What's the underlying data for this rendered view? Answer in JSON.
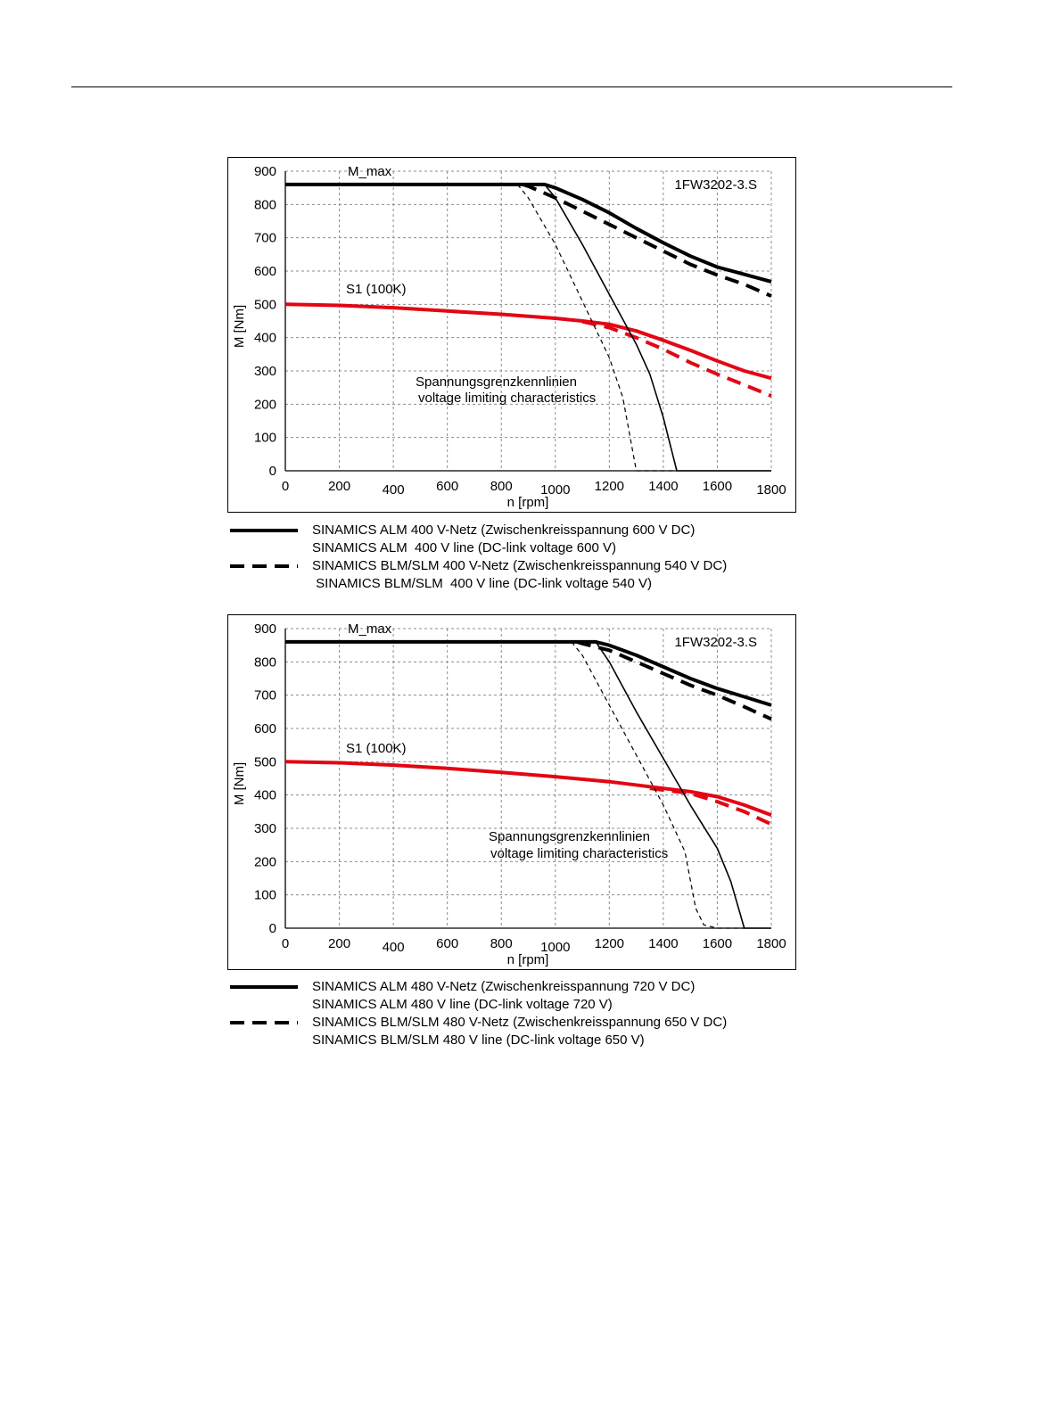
{
  "colors": {
    "s1": "#e30613",
    "limit": "#000000",
    "grid": "#8c8c8c"
  },
  "chart_data": [
    {
      "type": "line",
      "title": "",
      "model": "1FW3202-3.S",
      "xlabel": "n [rpm]",
      "ylabel": "M [Nm]",
      "xlim": [
        0,
        1800
      ],
      "ylim": [
        0,
        900
      ],
      "xticks": [
        0,
        200,
        400,
        600,
        800,
        1000,
        1200,
        1400,
        1600,
        1800
      ],
      "yticks": [
        0,
        100,
        200,
        300,
        400,
        500,
        600,
        700,
        800,
        900
      ],
      "grid": true,
      "annotations": {
        "mmax": "M_max",
        "s1": "S1 (100K)",
        "limit_de": "Spannungsgrenzkennlinien",
        "limit_en": "voltage limiting characteristics"
      },
      "series": [
        {
          "key": "mmax_alm",
          "style": "thick-solid",
          "color": "black",
          "points": [
            [
              0,
              860
            ],
            [
              960,
              860
            ],
            [
              1000,
              850
            ],
            [
              1100,
              815
            ],
            [
              1200,
              775
            ],
            [
              1300,
              728
            ],
            [
              1400,
              685
            ],
            [
              1500,
              645
            ],
            [
              1600,
              612
            ],
            [
              1700,
              590
            ],
            [
              1800,
              568
            ]
          ]
        },
        {
          "key": "mmax_blm",
          "style": "thick-dashed",
          "color": "black",
          "points": [
            [
              880,
              860
            ],
            [
              900,
              855
            ],
            [
              1000,
              820
            ],
            [
              1100,
              780
            ],
            [
              1200,
              740
            ],
            [
              1300,
              700
            ],
            [
              1400,
              660
            ],
            [
              1500,
              620
            ],
            [
              1600,
              588
            ],
            [
              1700,
              560
            ],
            [
              1800,
              525
            ]
          ]
        },
        {
          "key": "s1_alm",
          "style": "thick-solid",
          "color": "red",
          "points": [
            [
              0,
              500
            ],
            [
              200,
              497
            ],
            [
              400,
              490
            ],
            [
              600,
              480
            ],
            [
              800,
              470
            ],
            [
              1000,
              458
            ],
            [
              1100,
              450
            ],
            [
              1200,
              440
            ],
            [
              1300,
              420
            ],
            [
              1400,
              392
            ],
            [
              1500,
              362
            ],
            [
              1600,
              330
            ],
            [
              1700,
              300
            ],
            [
              1800,
              278
            ]
          ]
        },
        {
          "key": "s1_blm",
          "style": "thick-dashed",
          "color": "red",
          "points": [
            [
              1100,
              448
            ],
            [
              1200,
              430
            ],
            [
              1300,
              400
            ],
            [
              1400,
              365
            ],
            [
              1500,
              325
            ],
            [
              1600,
              290
            ],
            [
              1700,
              258
            ],
            [
              1800,
              225
            ]
          ]
        },
        {
          "key": "vlim_alm",
          "style": "thin-solid",
          "color": "black",
          "points": [
            [
              960,
              860
            ],
            [
              1000,
              820
            ],
            [
              1100,
              680
            ],
            [
              1200,
              530
            ],
            [
              1300,
              380
            ],
            [
              1350,
              290
            ],
            [
              1400,
              160
            ],
            [
              1450,
              0
            ],
            [
              1800,
              0
            ]
          ]
        },
        {
          "key": "vlim_blm",
          "style": "thin-dashed",
          "color": "black",
          "points": [
            [
              860,
              860
            ],
            [
              900,
              820
            ],
            [
              1000,
              680
            ],
            [
              1100,
              510
            ],
            [
              1200,
              340
            ],
            [
              1250,
              220
            ],
            [
              1300,
              0
            ],
            [
              1450,
              0
            ]
          ]
        }
      ]
    },
    {
      "type": "line",
      "title": "",
      "model": "1FW3202-3.S",
      "xlabel": "n [rpm]",
      "ylabel": "M [Nm]",
      "xlim": [
        0,
        1800
      ],
      "ylim": [
        0,
        900
      ],
      "xticks": [
        0,
        200,
        400,
        600,
        800,
        1000,
        1200,
        1400,
        1600,
        1800
      ],
      "yticks": [
        0,
        100,
        200,
        300,
        400,
        500,
        600,
        700,
        800,
        900
      ],
      "grid": true,
      "annotations": {
        "mmax": "M_max",
        "s1": "S1 (100K)",
        "limit_de": "Spannungsgrenzkennlinien",
        "limit_en": "voltage limiting characteristics"
      },
      "series": [
        {
          "key": "mmax_alm",
          "style": "thick-solid",
          "color": "black",
          "points": [
            [
              0,
              860
            ],
            [
              1150,
              860
            ],
            [
              1200,
              850
            ],
            [
              1300,
              820
            ],
            [
              1400,
              785
            ],
            [
              1500,
              750
            ],
            [
              1600,
              720
            ],
            [
              1700,
              695
            ],
            [
              1800,
              670
            ]
          ]
        },
        {
          "key": "mmax_blm",
          "style": "thick-dashed",
          "color": "black",
          "points": [
            [
              1080,
              860
            ],
            [
              1100,
              855
            ],
            [
              1200,
              835
            ],
            [
              1300,
              800
            ],
            [
              1400,
              765
            ],
            [
              1500,
              730
            ],
            [
              1600,
              700
            ],
            [
              1700,
              665
            ],
            [
              1800,
              628
            ]
          ]
        },
        {
          "key": "s1_alm",
          "style": "thick-solid",
          "color": "red",
          "points": [
            [
              0,
              500
            ],
            [
              200,
              497
            ],
            [
              400,
              490
            ],
            [
              600,
              480
            ],
            [
              800,
              468
            ],
            [
              1000,
              455
            ],
            [
              1200,
              440
            ],
            [
              1400,
              420
            ],
            [
              1500,
              410
            ],
            [
              1600,
              395
            ],
            [
              1700,
              370
            ],
            [
              1800,
              340
            ]
          ]
        },
        {
          "key": "s1_blm",
          "style": "thick-dashed",
          "color": "red",
          "points": [
            [
              1350,
              420
            ],
            [
              1500,
              405
            ],
            [
              1600,
              380
            ],
            [
              1700,
              350
            ],
            [
              1800,
              312
            ]
          ]
        },
        {
          "key": "vlim_alm",
          "style": "thin-solid",
          "color": "black",
          "points": [
            [
              1150,
              860
            ],
            [
              1200,
              800
            ],
            [
              1300,
              650
            ],
            [
              1400,
              510
            ],
            [
              1500,
              370
            ],
            [
              1600,
              240
            ],
            [
              1650,
              140
            ],
            [
              1700,
              0
            ],
            [
              1800,
              0
            ]
          ]
        },
        {
          "key": "vlim_blm",
          "style": "thin-dashed",
          "color": "black",
          "points": [
            [
              1060,
              860
            ],
            [
              1100,
              820
            ],
            [
              1200,
              670
            ],
            [
              1300,
              520
            ],
            [
              1400,
              370
            ],
            [
              1480,
              230
            ],
            [
              1520,
              60
            ],
            [
              1550,
              10
            ],
            [
              1600,
              0
            ],
            [
              1700,
              0
            ]
          ]
        }
      ]
    }
  ],
  "legends": [
    [
      {
        "style": "solid",
        "de": "SINAMICS ALM  400 V-Netz (Zwischenkreisspannung 600 V DC)",
        "en": "SINAMICS ALM  400 V line (DC-link voltage 600 V)"
      },
      {
        "style": "dashed",
        "de": "SINAMICS BLM/SLM  400 V-Netz (Zwischenkreisspannung 540 V DC)",
        "en": " SINAMICS BLM/SLM  400 V line (DC-link voltage 540 V)"
      }
    ],
    [
      {
        "style": "solid",
        "de": "SINAMICS ALM  480 V-Netz (Zwischenkreisspannung 720 V DC)",
        "en": "SINAMICS ALM  480 V line (DC-link voltage 720 V)"
      },
      {
        "style": "dashed",
        "de": "SINAMICS BLM/SLM  480 V-Netz (Zwischenkreisspannung 650 V DC)",
        "en": "SINAMICS BLM/SLM  480 V line (DC-link voltage 650 V)"
      }
    ]
  ]
}
